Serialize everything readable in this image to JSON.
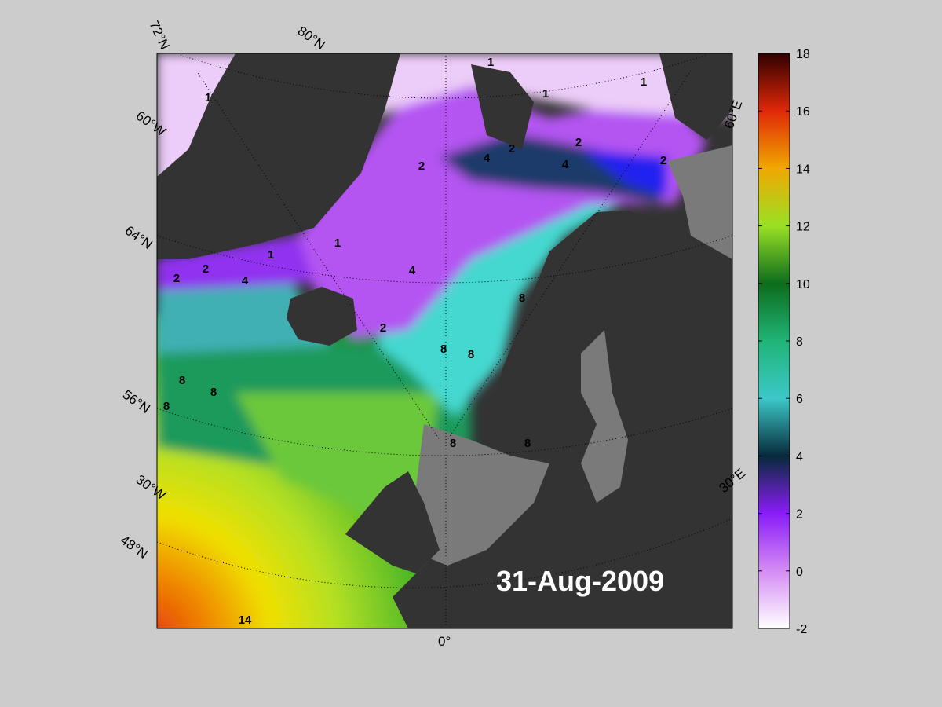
{
  "map": {
    "graticule_labels": [
      "72°N",
      "80°N",
      "60°W",
      "64°N",
      "56°N",
      "30°W",
      "48°N",
      "0°",
      "30°E",
      "60°E"
    ],
    "date": "31-Aug-2009",
    "contour_labels": [
      1,
      1,
      1,
      1,
      1,
      1,
      2,
      2,
      2,
      2,
      2,
      2,
      2,
      4,
      4,
      4,
      4,
      8,
      8,
      8,
      8,
      8,
      8,
      8,
      8,
      14
    ]
  },
  "colorbar": {
    "lim": [
      -2,
      18
    ],
    "ticks": [
      -2,
      0,
      2,
      4,
      6,
      8,
      10,
      12,
      14,
      16,
      18
    ],
    "colors": [
      "#ffffff",
      "#d48cf4",
      "#8a1cf8",
      "#062a3a",
      "#3cc8c8",
      "#20b478",
      "#0c6c1c",
      "#9ae024",
      "#f0a800",
      "#e02808",
      "#300000"
    ]
  }
}
